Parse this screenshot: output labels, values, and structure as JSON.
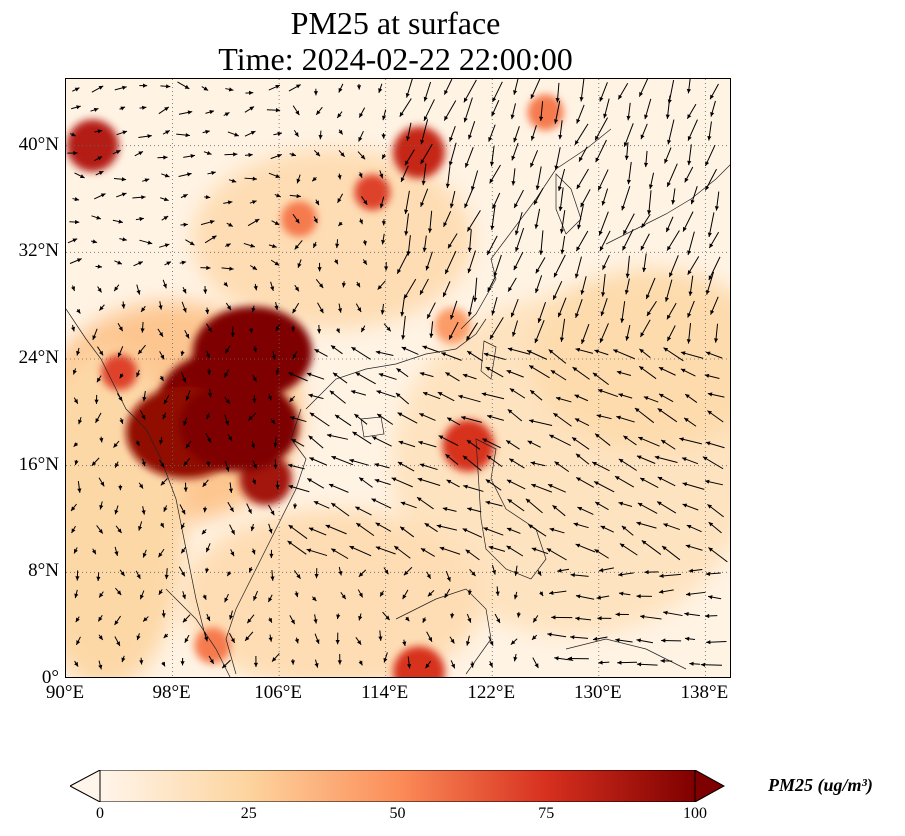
{
  "title": {
    "line1": "PM25 at surface",
    "line2": "Time: 2024-02-22 22:00:00"
  },
  "map": {
    "lon_range": [
      90,
      140
    ],
    "lat_range": [
      0,
      45
    ],
    "lon_ticks": [
      {
        "value": 90,
        "label": "90°E"
      },
      {
        "value": 98,
        "label": "98°E"
      },
      {
        "value": 106,
        "label": "106°E"
      },
      {
        "value": 114,
        "label": "114°E"
      },
      {
        "value": 122,
        "label": "122°E"
      },
      {
        "value": 130,
        "label": "130°E"
      },
      {
        "value": 138,
        "label": "138°E"
      }
    ],
    "lat_ticks": [
      {
        "value": 0,
        "label": "0°"
      },
      {
        "value": 8,
        "label": "8°N"
      },
      {
        "value": 16,
        "label": "16°N"
      },
      {
        "value": 24,
        "label": "24°N"
      },
      {
        "value": 32,
        "label": "32°N"
      },
      {
        "value": 40,
        "label": "40°N"
      }
    ],
    "gridlines": "dotted",
    "colormap": [
      "#fff5eb",
      "#fdd49e",
      "#fc8d59",
      "#d7301f",
      "#7f0000"
    ],
    "background_color": "#fff3e4",
    "hotspots": [
      {
        "lon": 101.5,
        "lat": 21,
        "value": 100
      },
      {
        "lon": 104,
        "lat": 24.5,
        "value": 100
      },
      {
        "lon": 99,
        "lat": 18.5,
        "value": 95
      },
      {
        "lon": 105,
        "lat": 15,
        "value": 90
      },
      {
        "lon": 103,
        "lat": 19,
        "value": 100
      },
      {
        "lon": 94,
        "lat": 23,
        "value": 70
      },
      {
        "lon": 92,
        "lat": 40,
        "value": 85
      },
      {
        "lon": 116.5,
        "lat": 39.5,
        "value": 80
      },
      {
        "lon": 113,
        "lat": 36.5,
        "value": 70
      },
      {
        "lon": 107.5,
        "lat": 34.5,
        "value": 55
      },
      {
        "lon": 120.2,
        "lat": 17.5,
        "value": 75
      },
      {
        "lon": 116.5,
        "lat": 0.5,
        "value": 75
      },
      {
        "lon": 101,
        "lat": 2.5,
        "value": 55
      },
      {
        "lon": 126,
        "lat": 42.5,
        "value": 55
      },
      {
        "lon": 119,
        "lat": 26.5,
        "value": 45
      }
    ]
  },
  "colorbar": {
    "min": 0,
    "max": 100,
    "extend": "both",
    "ticks": [
      {
        "value": 0,
        "label": "0"
      },
      {
        "value": 25,
        "label": "25"
      },
      {
        "value": 50,
        "label": "50"
      },
      {
        "value": 75,
        "label": "75"
      },
      {
        "value": 100,
        "label": "100"
      }
    ],
    "title": "PM25 (ug/m³)"
  }
}
